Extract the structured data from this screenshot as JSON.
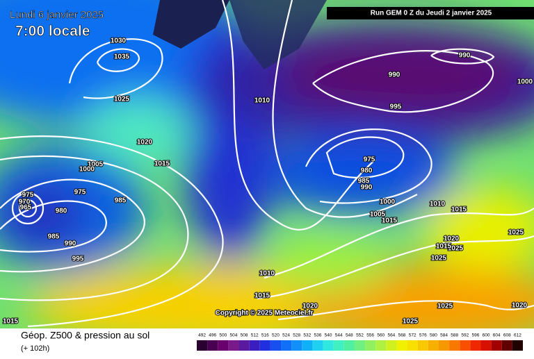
{
  "header": {
    "date": "Lundi 6 janvier 2025",
    "time": "7:00 locale",
    "run": "Run GEM 0 Z du Jeudi 2 janvier 2025"
  },
  "isobar_labels": [
    "1030",
    "1035",
    "1025",
    "1020",
    "1015",
    "1005",
    "1000",
    "975",
    "970",
    "965",
    "975",
    "980",
    "985",
    "990",
    "995",
    "985",
    "1010",
    "990",
    "990",
    "1000",
    "995",
    "975",
    "980",
    "985",
    "990",
    "1000",
    "1010",
    "1015",
    "1005",
    "1015",
    "1020",
    "1025",
    "1025",
    "1015",
    "1025",
    "1010",
    "1015",
    "1020",
    "1025",
    "1020",
    "1025",
    "1015"
  ],
  "copyright": "Copyright © 2025 Meteociel.fr",
  "footer": {
    "title": "Géop. Z500 & pression au sol",
    "lead": "(+ 102h)"
  },
  "scale": {
    "labels": [
      "492",
      "496",
      "500",
      "504",
      "508",
      "512",
      "516",
      "520",
      "524",
      "528",
      "532",
      "536",
      "540",
      "544",
      "548",
      "552",
      "556",
      "560",
      "564",
      "568",
      "572",
      "576",
      "580",
      "584",
      "588",
      "592",
      "596",
      "600",
      "604",
      "608",
      "612"
    ],
    "colors": [
      "#2a0030",
      "#4a0050",
      "#6a006e",
      "#7a1a8a",
      "#5a1aa0",
      "#3c1ec0",
      "#2030e0",
      "#1850f0",
      "#1070f8",
      "#1090f8",
      "#10b0f8",
      "#20d0f0",
      "#30e8e0",
      "#40f0c0",
      "#50f0a0",
      "#70f080",
      "#90f060",
      "#b0f040",
      "#d0f020",
      "#f0f000",
      "#f8e000",
      "#f8c800",
      "#f8b000",
      "#f89800",
      "#f87800",
      "#f85000",
      "#f02800",
      "#d81000",
      "#a00000",
      "#600000",
      "#200000"
    ]
  }
}
